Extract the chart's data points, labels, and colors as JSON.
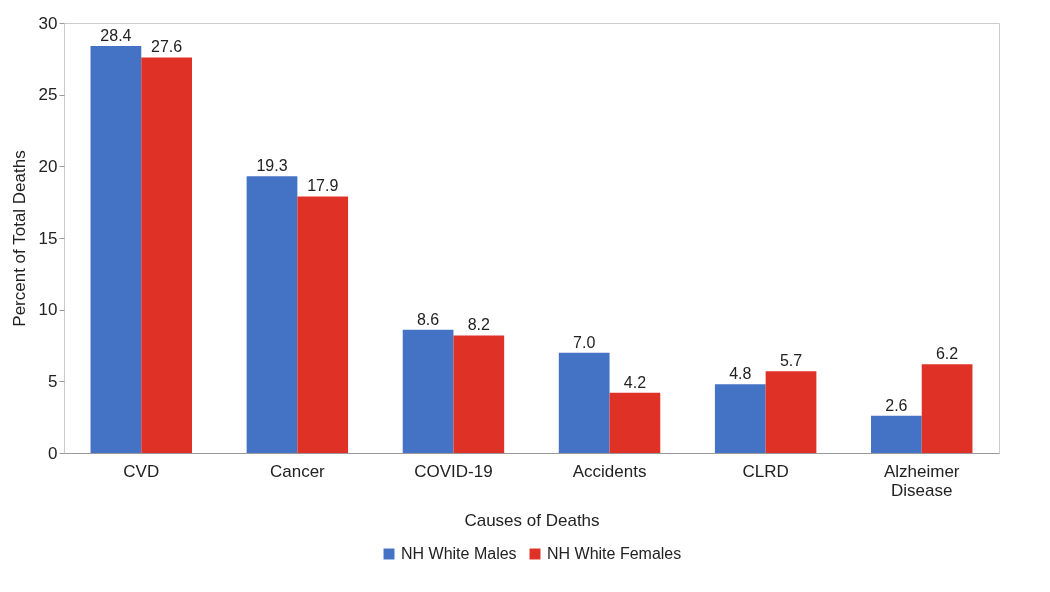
{
  "chart_data": {
    "type": "bar",
    "xlabel": "Causes of Deaths",
    "ylabel": "Percent of Total Deaths",
    "categories": [
      "CVD",
      "Cancer",
      "COVID-19",
      "Accidents",
      "CLRD",
      "Alzheimer Disease"
    ],
    "series": [
      {
        "name": "NH White Males",
        "color": "#4472c4",
        "values": [
          28.4,
          19.3,
          8.6,
          7.0,
          4.8,
          2.6
        ],
        "value_labels": [
          "28.4",
          "19.3",
          "8.6",
          "7.0",
          "4.8",
          "2.6"
        ]
      },
      {
        "name": "NH White Females",
        "color": "#e03127",
        "values": [
          27.6,
          17.9,
          8.2,
          4.2,
          5.7,
          6.2
        ],
        "value_labels": [
          "27.6",
          "17.9",
          "8.2",
          "4.2",
          "5.7",
          "6.2"
        ]
      }
    ],
    "ylim": [
      0,
      30
    ],
    "yticks": [
      0,
      5,
      10,
      15,
      20,
      25,
      30
    ],
    "grid": false,
    "legend": "bottom"
  }
}
